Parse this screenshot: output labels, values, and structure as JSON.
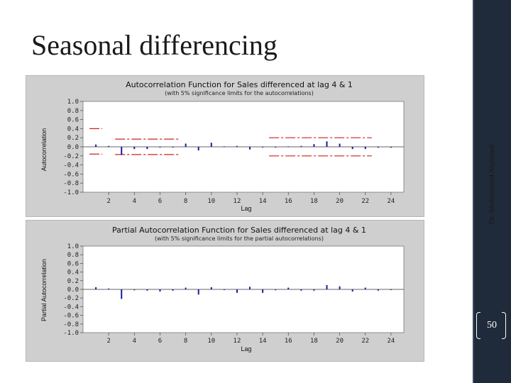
{
  "slide": {
    "title": "Seasonal differencing",
    "author": "Dr. Mohammed Alahmed",
    "page_number": "50"
  },
  "colors": {
    "bar": "#1a1aa8",
    "limit": "#cc2222",
    "sidebar": "#1f2a3a",
    "panel": "#cfcfcf"
  },
  "chart_data": [
    {
      "type": "bar",
      "title": "Autocorrelation Function for Sales differenced at lag 4 & 1",
      "subtitle": "(with 5% significance limits for the autocorrelations)",
      "xlabel": "Lag",
      "ylabel": "Autocorrelation",
      "x": [
        1,
        2,
        3,
        4,
        5,
        6,
        7,
        8,
        9,
        10,
        11,
        12,
        13,
        14,
        15,
        16,
        17,
        18,
        19,
        20,
        21,
        22,
        23,
        24
      ],
      "values": [
        0.05,
        0.02,
        -0.18,
        -0.05,
        -0.05,
        0.0,
        -0.01,
        0.07,
        -0.08,
        0.09,
        0.01,
        0.02,
        -0.06,
        0.0,
        0.0,
        0.01,
        0.02,
        0.06,
        0.12,
        0.07,
        -0.05,
        -0.05,
        -0.02,
        -0.02
      ],
      "xticks": [
        2,
        4,
        6,
        8,
        10,
        12,
        14,
        16,
        18,
        20,
        22,
        24
      ],
      "yticks": [
        1.0,
        0.8,
        0.6,
        0.4,
        0.2,
        0.0,
        -0.2,
        -0.4,
        -0.6,
        -0.8,
        -1.0
      ],
      "ytick_labels": [
        "1.0",
        "0.8",
        "0.6",
        "0.4",
        "0.2",
        "0.0",
        "-0.2",
        "-0.4",
        "-0.6",
        "-0.8",
        "-1.0"
      ],
      "ylim": [
        -1.0,
        1.0
      ],
      "xlim": [
        0,
        25
      ],
      "significance_limits": [
        {
          "from": 0.5,
          "to": 1.5,
          "upper": 0.4,
          "lower": -0.16
        },
        {
          "from": 2.5,
          "to": 7.5,
          "upper": 0.17,
          "lower": -0.17
        },
        {
          "from": 14.5,
          "to": 22.5,
          "upper": 0.2,
          "lower": -0.2
        }
      ]
    },
    {
      "type": "bar",
      "title": "Partial Autocorrelation Function for Sales differenced at lag 4 & 1",
      "subtitle": "(with 5% significance limits for the partial autocorrelations)",
      "xlabel": "Lag",
      "ylabel": "Partial Autocorrelation",
      "x": [
        1,
        2,
        3,
        4,
        5,
        6,
        7,
        8,
        9,
        10,
        11,
        12,
        13,
        14,
        15,
        16,
        17,
        18,
        19,
        20,
        21,
        22,
        23,
        24
      ],
      "values": [
        0.05,
        0.02,
        -0.22,
        -0.02,
        -0.03,
        -0.05,
        -0.03,
        0.04,
        -0.12,
        0.05,
        -0.01,
        -0.08,
        0.06,
        -0.08,
        -0.02,
        0.04,
        -0.03,
        -0.03,
        0.1,
        0.07,
        -0.05,
        0.04,
        -0.03,
        -0.01
      ],
      "xticks": [
        2,
        4,
        6,
        8,
        10,
        12,
        14,
        16,
        18,
        20,
        22,
        24
      ],
      "yticks": [
        1.0,
        0.8,
        0.6,
        0.4,
        0.2,
        0.0,
        -0.2,
        -0.4,
        -0.6,
        -0.8,
        -1.0
      ],
      "ytick_labels": [
        "1.0",
        "0.8",
        "0.6",
        "0.4",
        "0.2",
        "0.0",
        "-0.2",
        "-0.4",
        "-0.6",
        "-0.8",
        "-1.0"
      ],
      "ylim": [
        -1.0,
        1.0
      ],
      "xlim": [
        0,
        25
      ],
      "significance_limits": []
    }
  ]
}
